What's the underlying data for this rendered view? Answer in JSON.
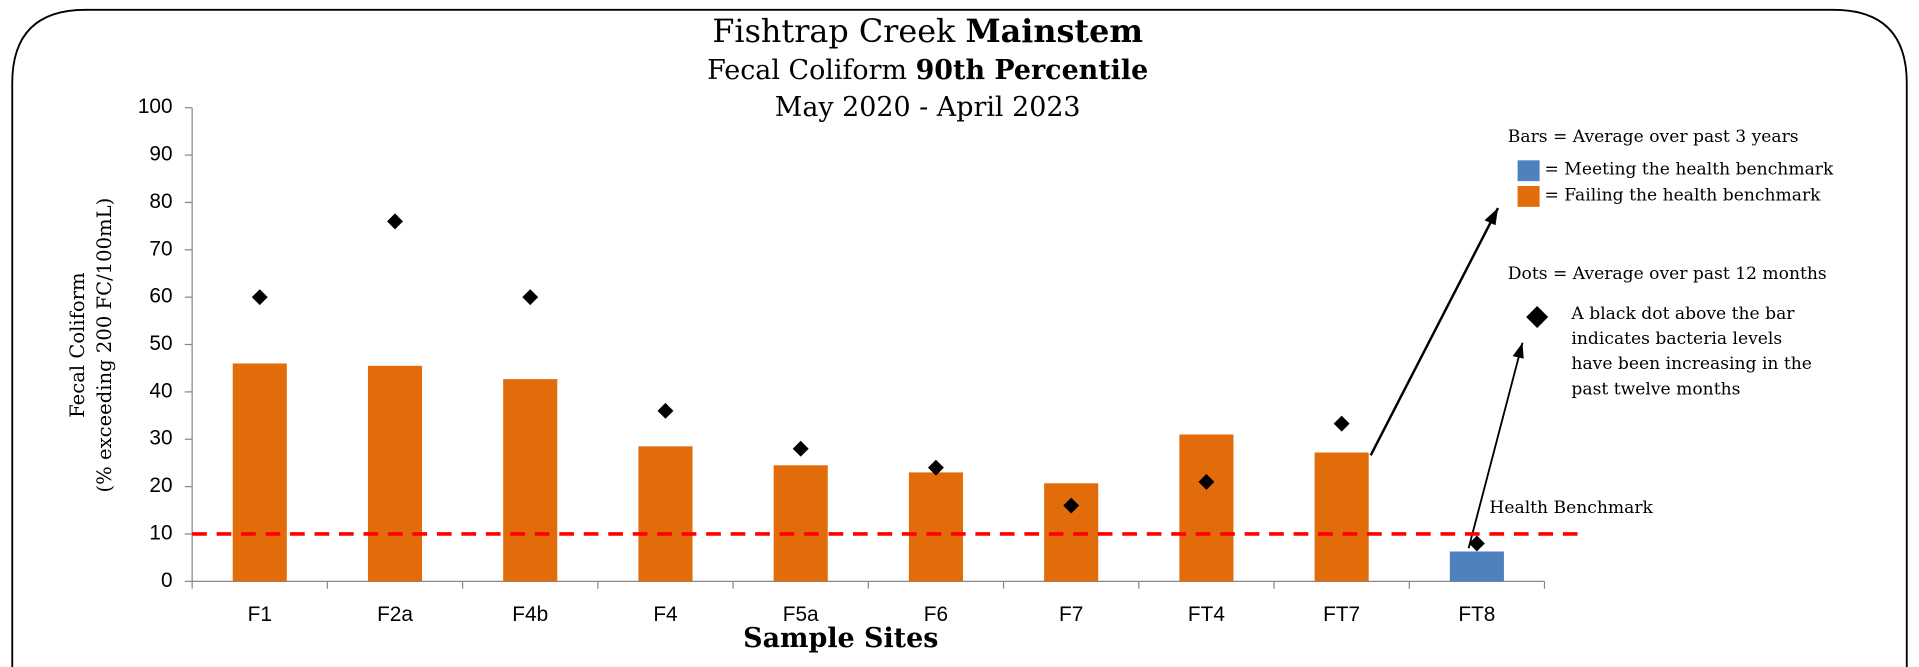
{
  "chart_data": {
    "type": "bar",
    "title": {
      "text": "Fishtrap Creek",
      "emphasis": "Mainstem"
    },
    "subtitle": {
      "text": "Fecal Coliform",
      "emphasis": "90th Percentile"
    },
    "period": "May 2020 - April 2023",
    "y_label": [
      "Fecal Coliform",
      "(% exceeding 200 FC/100mL)"
    ],
    "x_label": "Sample Sites",
    "categories": [
      "F1",
      "F2a",
      "F4b",
      "F4",
      "F5a",
      "F6",
      "F7",
      "FT4",
      "FT7",
      "FT8"
    ],
    "series": [
      {
        "name": "Bars",
        "legend_text": "= Average over past 3 years",
        "values": [
          46,
          45.5,
          42.7,
          28.5,
          24.5,
          23,
          20.7,
          31,
          27.2,
          6.3
        ],
        "colors": [
          "#e36c0a",
          "#e36c0a",
          "#e36c0a",
          "#e36c0a",
          "#e36c0a",
          "#e36c0a",
          "#e36c0a",
          "#e36c0a",
          "#e36c0a",
          "#4f81bd"
        ]
      },
      {
        "name": "Dots",
        "legend_text": "= Average over past 12 months",
        "color": "#000000",
        "values": [
          60,
          76,
          60,
          36,
          28,
          24,
          16,
          21,
          33.3,
          8
        ]
      }
    ],
    "legend_items": [
      {
        "color": "#4f81bd",
        "label": "= Meeting the health benchmark"
      },
      {
        "color": "#e36c0a",
        "label": "= Failing the health benchmark"
      }
    ],
    "dot_note": [
      "A black dot above the bar",
      "indicates bacteria levels",
      "have been increasing in the",
      "past twelve months"
    ],
    "benchmark": {
      "value": 10,
      "label": "Health Benchmark",
      "color": "#ff0000"
    },
    "ylim": [
      0,
      100
    ],
    "yticks": [
      0,
      10,
      20,
      30,
      40,
      50,
      60,
      70,
      80,
      90,
      100
    ]
  }
}
